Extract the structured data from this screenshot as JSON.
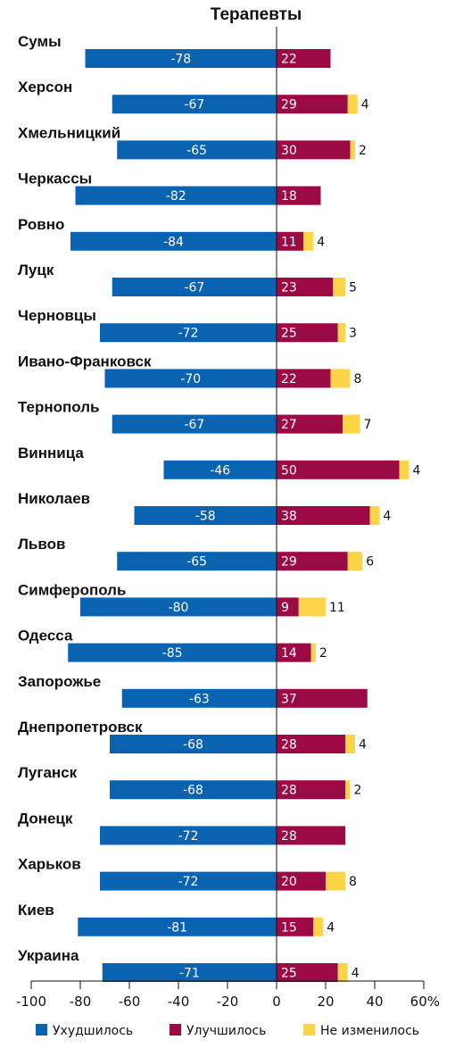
{
  "chart_data": {
    "type": "bar",
    "orientation": "horizontal",
    "stacked": true,
    "title": "Терапевты",
    "categories": [
      "Сумы",
      "Херсон",
      "Хмельницкий",
      "Черкассы",
      "Ровно",
      "Луцк",
      "Черновцы",
      "Ивано-Франковск",
      "Тернополь",
      "Винница",
      "Николаев",
      "Львов",
      "Симферополь",
      "Одесса",
      "Запорожье",
      "Днепропетровск",
      "Луганск",
      "Донецк",
      "Харьков",
      "Киев",
      "Украина"
    ],
    "series": [
      {
        "name": "Ухудшилось",
        "color": "#0a63b0",
        "values": [
          -78,
          -67,
          -65,
          -82,
          -84,
          -67,
          -72,
          -70,
          -67,
          -46,
          -58,
          -65,
          -80,
          -85,
          -63,
          -68,
          -68,
          -72,
          -72,
          -81,
          -71
        ]
      },
      {
        "name": "Улучшилось",
        "color": "#9b0a45",
        "values": [
          22,
          29,
          30,
          18,
          11,
          23,
          25,
          22,
          27,
          50,
          38,
          29,
          9,
          14,
          37,
          28,
          28,
          28,
          20,
          15,
          25
        ]
      },
      {
        "name": "Не изменилось",
        "color": "#fdd447",
        "values": [
          0,
          4,
          2,
          0,
          4,
          5,
          3,
          8,
          7,
          4,
          4,
          6,
          11,
          2,
          0,
          4,
          2,
          0,
          8,
          4,
          4
        ]
      }
    ],
    "xlim": [
      -100,
      60
    ],
    "xticks": [
      "-100",
      "-80",
      "-60",
      "-40",
      "-20",
      "0",
      "20",
      "40",
      "60%"
    ],
    "legend_position": "bottom",
    "grid": false
  }
}
